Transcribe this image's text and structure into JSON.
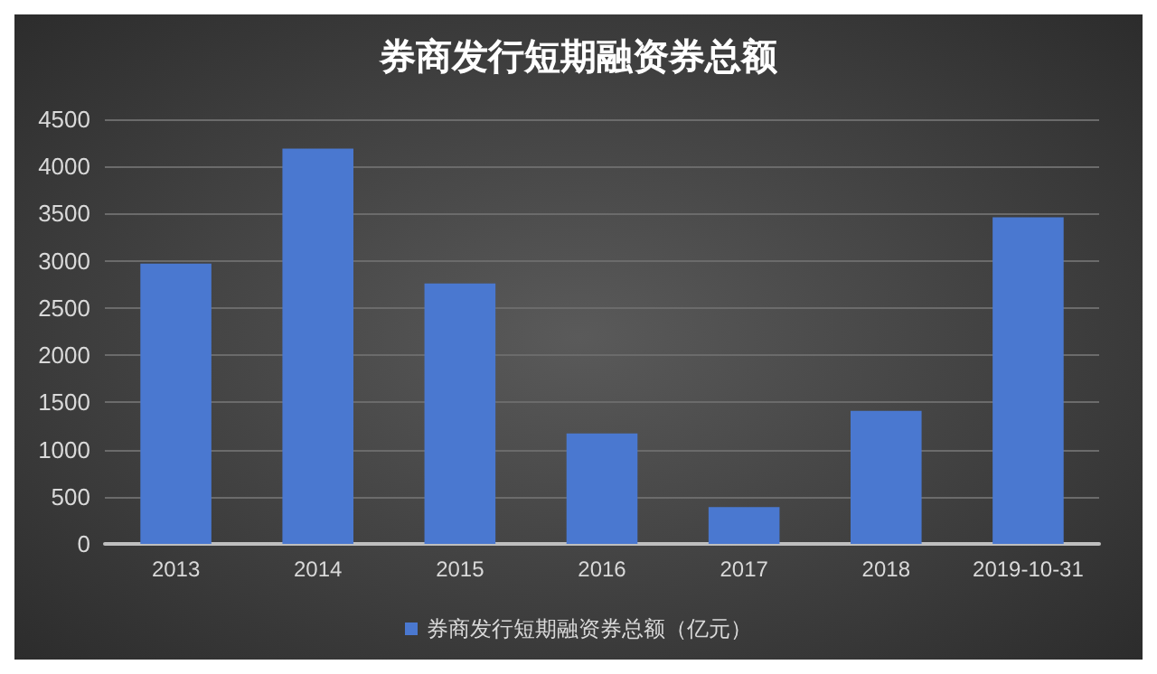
{
  "chart_data": {
    "type": "bar",
    "title": "券商发行短期融资券总额",
    "categories": [
      "2013",
      "2014",
      "2015",
      "2016",
      "2017",
      "2018",
      "2019-10-31"
    ],
    "series": [
      {
        "name": "券商发行短期融资券总额（亿元）",
        "color": "#4a78d0",
        "values": [
          2970,
          4190,
          2760,
          1170,
          390,
          1410,
          3460
        ]
      }
    ],
    "ylim": [
      0,
      4500
    ],
    "yticks": [
      0,
      500,
      1000,
      1500,
      2000,
      2500,
      3000,
      3500,
      4000,
      4500
    ],
    "grid": "y",
    "legend": "bottom"
  }
}
